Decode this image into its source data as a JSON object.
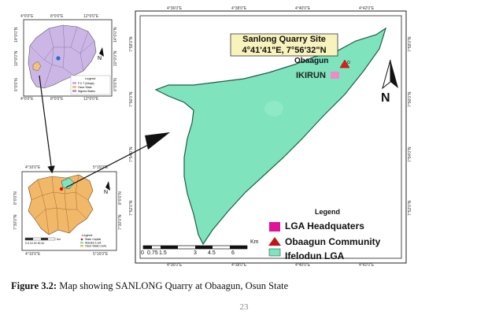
{
  "main_map": {
    "callout_title": "Sanlong Quarry Site",
    "callout_coords": "4°41'41\"E, 7°56'32\"N",
    "place_obaagun": "Obaagun",
    "place_ikirun": "IKIRUN",
    "north_label": "N",
    "top_ticks": [
      "4°36'0\"E",
      "4°38'0\"E",
      "4°40'0\"E",
      "4°42'0\"E"
    ],
    "bottom_ticks": [
      "4°36'0\"E",
      "4°38'0\"E",
      "4°40'0\"E",
      "4°42'0\"E"
    ],
    "left_ticks": [
      "7°58'0\"N",
      "7°56'0\"N",
      "7°54'0\"N",
      "7°52'0\"N",
      "7°50'0\"N"
    ],
    "right_ticks": [
      "7°58'0\"N",
      "7°56'0\"N",
      "7°54'0\"N",
      "7°52'0\"N",
      "7°50'0\"N"
    ],
    "scale_labels": [
      "0",
      "0.75",
      "1.5",
      "3",
      "4.5",
      "6"
    ],
    "scale_unit": "Km",
    "legend": {
      "title": "Legend",
      "items": [
        {
          "label": "LGA Headquaters",
          "color": "#e0119a"
        },
        {
          "label": "Obaagun Community",
          "color": "#e31a1c"
        },
        {
          "label": "Ifelodun LGA",
          "color": "#7fe3be"
        }
      ]
    }
  },
  "nigeria_inset": {
    "top_ticks": [
      "4°0'0\"E",
      "8°0'0\"E",
      "12°0'0\"E"
    ],
    "bottom_ticks": [
      "4°0'0\"E",
      "8°0'0\"E",
      "12°0'0\"E"
    ],
    "left_ticks": [
      "14°0'0\"N",
      "10°0'0\"N",
      "6°0'0\"N"
    ],
    "right_ticks": [
      "14°0'0\"N",
      "10°0'0\"N",
      "6°0'0\"N"
    ],
    "north_label": "N",
    "legend_title": "Legend",
    "legend_items": [
      "F.C.T (Abuja)",
      "Osun State",
      "Nigeria States"
    ]
  },
  "osun_inset": {
    "top_ticks": [
      "4°10'0\"E",
      "5°15'0\"E"
    ],
    "bottom_ticks": [
      "4°10'0\"E",
      "5°15'0\"E"
    ],
    "left_ticks": [
      "8°0'0\"N",
      "7°30'0\"N"
    ],
    "right_ticks": [
      "8°0'0\"N",
      "7°30'0\"N"
    ],
    "north_label": "N",
    "scale_labels": "0 5 10 20 30 40",
    "scale_unit": "Km",
    "legend_title": "Legend",
    "legend_items": [
      "State Capital",
      "Ifelodun LGA",
      "Osun State LGAs"
    ]
  },
  "caption_label": "Figure 3.2:",
  "caption_text": " Map showing SANLONG Quarry at Obaagun, Osun State",
  "page_number": "23"
}
